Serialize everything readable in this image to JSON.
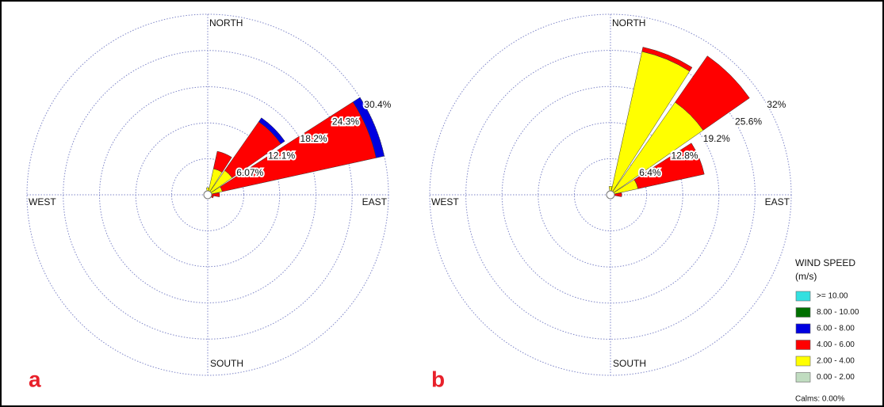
{
  "legend": {
    "title": "WIND SPEED",
    "unit": "(m/s)",
    "calms": "Calms: 0.00%",
    "series": [
      {
        "name": "0.00 - 2.00",
        "color": "#c0dcc0"
      },
      {
        "name": "2.00 - 4.00",
        "color": "#ffff00"
      },
      {
        "name": "4.00 - 6.00",
        "color": "#ff0000"
      },
      {
        "name": "6.00 - 8.00",
        "color": "#0000e0"
      },
      {
        "name": "8.00 - 10.00",
        "color": "#007000"
      },
      {
        "name": ">= 10.00",
        "color": "#33e0e0"
      }
    ]
  },
  "chart_data": [
    {
      "type": "windrose",
      "panel_label": "a",
      "compass_labels": [
        "NORTH",
        "EAST",
        "SOUTH",
        "WEST"
      ],
      "x": [
        0,
        22.5,
        45,
        67.5,
        90,
        112.5,
        135,
        157.5,
        180,
        202.5,
        225,
        247.5,
        270,
        292.5,
        315,
        337.5
      ],
      "ylim": [
        0,
        30.4
      ],
      "yticks": [
        {
          "value": 6.07,
          "label": "6.07%"
        },
        {
          "value": 12.1,
          "label": "12.1%"
        },
        {
          "value": 18.2,
          "label": "18.2%"
        },
        {
          "value": 24.3,
          "label": "24.3%"
        },
        {
          "value": 30.4,
          "label": "30.4%"
        }
      ],
      "series": [
        {
          "values": [
            0,
            0,
            0,
            0,
            0,
            0,
            0,
            0,
            0,
            0,
            0,
            0,
            0,
            0,
            0,
            0
          ]
        },
        {
          "values": [
            1.2,
            4.5,
            5,
            2.5,
            0,
            0,
            0,
            0,
            0,
            0,
            0,
            0,
            0,
            0,
            0,
            0
          ]
        },
        {
          "values": [
            0,
            3,
            10,
            26.5,
            2,
            1,
            0,
            0,
            0,
            0,
            0,
            0,
            0,
            0,
            0,
            0
          ]
        },
        {
          "values": [
            0,
            0,
            0.8,
            1.4,
            0,
            0,
            0,
            0,
            0,
            0,
            0,
            0,
            0,
            0,
            0,
            0
          ]
        },
        {
          "values": [
            0,
            0,
            0,
            0,
            0,
            0,
            0,
            0,
            0,
            0,
            0,
            0,
            0,
            0,
            0,
            0
          ]
        },
        {
          "values": [
            0,
            0,
            0,
            0,
            0,
            0,
            0,
            0,
            0,
            0,
            0,
            0,
            0,
            0,
            0,
            0
          ]
        }
      ]
    },
    {
      "type": "windrose",
      "panel_label": "b",
      "compass_labels": [
        "NORTH",
        "EAST",
        "SOUTH",
        "WEST"
      ],
      "x": [
        0,
        22.5,
        45,
        67.5,
        90,
        112.5,
        135,
        157.5,
        180,
        202.5,
        225,
        247.5,
        270,
        292.5,
        315,
        337.5
      ],
      "ylim": [
        0,
        32
      ],
      "yticks": [
        {
          "value": 6.4,
          "label": "6.4%"
        },
        {
          "value": 12.8,
          "label": "12.8%"
        },
        {
          "value": 19.2,
          "label": "19.2%"
        },
        {
          "value": 25.6,
          "label": "25.6%"
        },
        {
          "value": 32,
          "label": "32%"
        }
      ],
      "series": [
        {
          "values": [
            0,
            0,
            0,
            0,
            0,
            0,
            0,
            0,
            0,
            0,
            0,
            0,
            0,
            0,
            0,
            0
          ]
        },
        {
          "values": [
            1.5,
            26,
            20,
            5,
            0,
            0,
            0,
            0,
            0,
            0,
            0,
            0,
            0,
            0,
            0,
            0
          ]
        },
        {
          "values": [
            0,
            0.8,
            10,
            12,
            2,
            0,
            0,
            0,
            0,
            0,
            0,
            0,
            0,
            0,
            0,
            0
          ]
        },
        {
          "values": [
            0,
            0,
            0,
            0,
            0,
            0,
            0,
            0,
            0,
            0,
            0,
            0,
            0,
            0,
            0,
            0
          ]
        },
        {
          "values": [
            0,
            0,
            0,
            0,
            0,
            0,
            0,
            0,
            0,
            0,
            0,
            0,
            0,
            0,
            0,
            0
          ]
        },
        {
          "values": [
            0,
            0,
            0,
            0,
            0,
            0,
            0,
            0,
            0,
            0,
            0,
            0,
            0,
            0,
            0,
            0
          ]
        }
      ]
    }
  ]
}
